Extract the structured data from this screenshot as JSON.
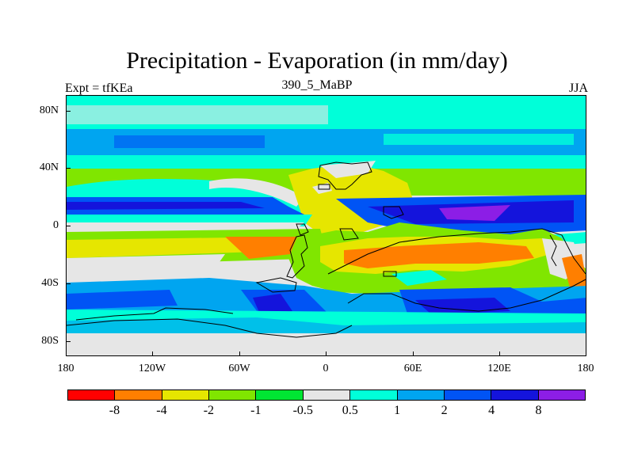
{
  "title": "Precipitation - Evaporation (in mm/day)",
  "subtitle_left": "Expt = tfKEa",
  "subtitle_center": "390_5_MaBP",
  "subtitle_right": "JJA",
  "map": {
    "lat_labels": [
      "80N",
      "40N",
      "0",
      "40S",
      "80S"
    ],
    "lon_labels": [
      "180",
      "120W",
      "60W",
      "0",
      "60E",
      "120E",
      "180"
    ]
  },
  "colorbar": {
    "colors": [
      "#ff0000",
      "#ff7f00",
      "#e6e600",
      "#80e600",
      "#00e633",
      "#e6e6e6",
      "#00ffd9",
      "#00a5f0",
      "#0054f5",
      "#1414dc",
      "#8c1ee6"
    ],
    "labels": [
      "-8",
      "-4",
      "-2",
      "-1",
      "-0.5",
      "0.5",
      "1",
      "2",
      "4",
      "8"
    ]
  }
}
